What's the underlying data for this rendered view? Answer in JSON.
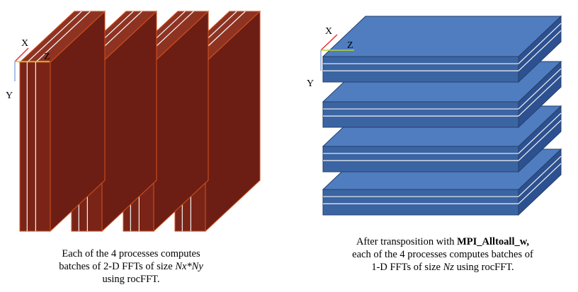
{
  "left_panel": {
    "axes": {
      "x": "X",
      "y": "Y",
      "z": "Z"
    },
    "slab_count": 4,
    "colors": {
      "front": "#7a2418",
      "side": "#6d1e14",
      "top": "#8e3322",
      "outline": "#d2521f",
      "lines": "#f3f3f3"
    },
    "caption": {
      "line1": "Each of the 4 processes computes",
      "line2_prefix": "batches of 2-D FFTs of size ",
      "line2_italic": "Nx*Ny",
      "line3": "using rocFFT."
    }
  },
  "right_panel": {
    "axes": {
      "x": "X",
      "y": "Y",
      "z": "Z"
    },
    "slab_count": 4,
    "colors": {
      "front": "#3b64a3",
      "side": "#2d5190",
      "top": "#4f7dc0",
      "outline": "#243f6c",
      "lines": "#f3f3f3"
    },
    "caption": {
      "line1_prefix": "After transposition with ",
      "line1_bold": "MPI_Alltoall_w,",
      "line2": "each of the 4 processes computes batches of",
      "line3_prefix": "1-D FFTs of size ",
      "line3_italic": "Nz",
      "line3_suffix": " using rocFFT."
    }
  }
}
